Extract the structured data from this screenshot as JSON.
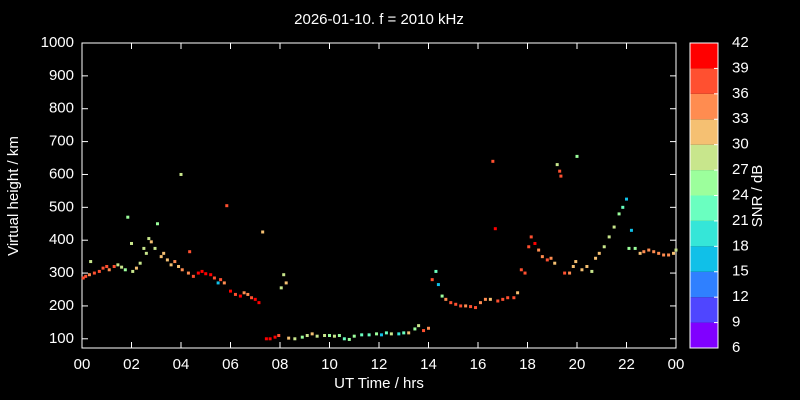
{
  "chart_data": {
    "type": "scatter",
    "title": "2026-01-10. f = 2010 kHz",
    "xlabel": "UT Time / hrs",
    "ylabel": "Virtual height / km",
    "xlim": [
      0,
      24
    ],
    "xticks": [
      {
        "value": 0,
        "label": "00"
      },
      {
        "value": 2,
        "label": "02"
      },
      {
        "value": 4,
        "label": "04"
      },
      {
        "value": 6,
        "label": "06"
      },
      {
        "value": 8,
        "label": "08"
      },
      10,
      12,
      14,
      16,
      18,
      20,
      22,
      {
        "value": 24,
        "label": "00"
      }
    ],
    "ylim": [
      72,
      1000
    ],
    "yticks": [
      100,
      200,
      300,
      400,
      500,
      600,
      700,
      800,
      900,
      1000
    ],
    "x": [
      0.05,
      0.15,
      0.3,
      0.35,
      0.5,
      0.7,
      0.85,
      1.0,
      1.1,
      1.3,
      1.45,
      1.6,
      1.75,
      1.85,
      2.0,
      2.05,
      2.2,
      2.35,
      2.5,
      2.6,
      2.7,
      2.8,
      2.95,
      3.05,
      3.2,
      3.3,
      3.45,
      3.6,
      3.75,
      3.9,
      4.0,
      4.05,
      4.3,
      4.35,
      4.5,
      4.7,
      4.85,
      5.0,
      5.2,
      5.35,
      5.5,
      5.6,
      5.75,
      5.85,
      6.0,
      6.2,
      6.4,
      6.55,
      6.7,
      6.85,
      7.0,
      7.15,
      7.3,
      7.45,
      7.6,
      7.8,
      7.95,
      8.05,
      8.15,
      8.25,
      8.35,
      8.6,
      8.9,
      9.1,
      9.3,
      9.5,
      9.8,
      10.0,
      10.2,
      10.4,
      10.6,
      10.8,
      11.0,
      11.3,
      11.6,
      11.9,
      12.1,
      12.3,
      12.5,
      12.8,
      13.0,
      13.2,
      13.45,
      13.6,
      13.8,
      14.0,
      14.15,
      14.3,
      14.4,
      14.55,
      14.7,
      14.9,
      15.1,
      15.3,
      15.5,
      15.7,
      15.9,
      16.1,
      16.3,
      16.5,
      16.6,
      16.7,
      16.8,
      17.0,
      17.2,
      17.45,
      17.6,
      17.75,
      17.9,
      18.05,
      18.15,
      18.3,
      18.45,
      18.6,
      18.8,
      18.95,
      19.1,
      19.2,
      19.3,
      19.35,
      19.5,
      19.7,
      19.85,
      19.95,
      20.0,
      20.2,
      20.4,
      20.6,
      20.75,
      20.9,
      21.1,
      21.3,
      21.5,
      21.7,
      21.85,
      22.0,
      22.1,
      22.2,
      22.35,
      22.55,
      22.7,
      22.9,
      23.1,
      23.3,
      23.5,
      23.7,
      23.9,
      24.0
    ],
    "values": [
      285,
      290,
      295,
      335,
      300,
      305,
      315,
      320,
      310,
      320,
      325,
      318,
      310,
      470,
      390,
      305,
      315,
      330,
      375,
      360,
      405,
      395,
      375,
      450,
      350,
      360,
      340,
      325,
      335,
      320,
      600,
      310,
      300,
      365,
      290,
      300,
      305,
      298,
      295,
      285,
      270,
      280,
      270,
      505,
      245,
      235,
      230,
      240,
      235,
      225,
      220,
      210,
      425,
      100,
      100,
      105,
      110,
      255,
      295,
      270,
      102,
      100,
      105,
      110,
      115,
      108,
      110,
      110,
      108,
      110,
      100,
      98,
      108,
      112,
      112,
      115,
      112,
      118,
      115,
      115,
      118,
      118,
      130,
      140,
      125,
      132,
      280,
      305,
      265,
      230,
      220,
      210,
      205,
      200,
      200,
      198,
      195,
      210,
      220,
      220,
      640,
      435,
      215,
      220,
      225,
      225,
      240,
      310,
      300,
      380,
      410,
      390,
      370,
      350,
      340,
      345,
      330,
      630,
      610,
      595,
      300,
      300,
      320,
      335,
      655,
      310,
      320,
      305,
      345,
      360,
      380,
      410,
      440,
      480,
      500,
      525,
      375,
      430,
      375,
      360,
      365,
      370,
      365,
      360,
      355,
      355,
      360,
      370
    ],
    "snr": [
      36,
      36,
      33,
      27,
      36,
      36,
      36,
      36,
      33,
      36,
      27,
      27,
      24,
      24,
      27,
      27,
      30,
      27,
      27,
      27,
      27,
      30,
      27,
      24,
      30,
      30,
      30,
      30,
      33,
      30,
      27,
      33,
      33,
      36,
      36,
      39,
      39,
      39,
      39,
      36,
      15,
      36,
      33,
      36,
      39,
      36,
      39,
      33,
      33,
      36,
      39,
      39,
      30,
      39,
      39,
      39,
      36,
      27,
      27,
      30,
      30,
      27,
      24,
      27,
      30,
      27,
      27,
      24,
      27,
      24,
      21,
      24,
      24,
      21,
      21,
      24,
      15,
      21,
      27,
      18,
      21,
      30,
      24,
      27,
      36,
      33,
      36,
      21,
      15,
      24,
      33,
      36,
      36,
      36,
      33,
      36,
      36,
      33,
      33,
      30,
      36,
      42,
      36,
      36,
      36,
      36,
      30,
      36,
      36,
      36,
      36,
      39,
      33,
      33,
      36,
      33,
      30,
      27,
      36,
      36,
      36,
      33,
      30,
      30,
      24,
      30,
      30,
      27,
      30,
      30,
      27,
      27,
      27,
      24,
      21,
      15,
      24,
      15,
      24,
      30,
      33,
      33,
      33,
      33,
      33,
      33,
      30,
      27
    ],
    "colorbar": {
      "label": "SNR / dB",
      "lim": [
        6,
        42
      ],
      "ticks": [
        6,
        9,
        12,
        15,
        18,
        21,
        24,
        27,
        30,
        33,
        36,
        39,
        42
      ],
      "colors": [
        "#8000ff",
        "#4f46ff",
        "#2f80ff",
        "#10c0e8",
        "#35e6d8",
        "#6affc0",
        "#9cff9c",
        "#c8e68c",
        "#f5c072",
        "#ff8c50",
        "#ff5030",
        "#ff0000"
      ]
    }
  }
}
